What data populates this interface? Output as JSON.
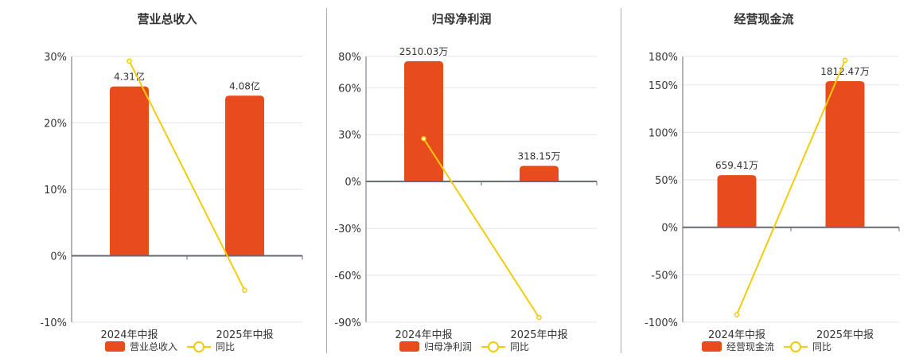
{
  "colors": {
    "bar": "#e84c1c",
    "line": "#f2cc0c",
    "grid": "#e0e4ee",
    "axis": "#666a73"
  },
  "chart_data": [
    {
      "type": "bar+line",
      "title": "营业总收入",
      "categories": [
        "2024年中报",
        "2025年中报"
      ],
      "bar_series": {
        "name": "营业总收入",
        "labels": [
          "4.31亿",
          "4.08亿"
        ],
        "values": [
          4.31,
          4.08
        ],
        "unit": "亿",
        "plotted_pct": [
          25.5,
          24.1
        ]
      },
      "line_series": {
        "name": "同比",
        "values": [
          29.3,
          -5.2
        ],
        "unit": "%"
      },
      "yticks": [
        "30%",
        "20%",
        "10%",
        "0%",
        "-10%"
      ],
      "ylim": [
        -10,
        30
      ],
      "grid": true,
      "legend_position": "bottom"
    },
    {
      "type": "bar+line",
      "title": "归母净利润",
      "categories": [
        "2024年中报",
        "2025年中报"
      ],
      "bar_series": {
        "name": "归母净利润",
        "labels": [
          "2510.03万",
          "318.15万"
        ],
        "values": [
          2510.03,
          318.15
        ],
        "unit": "万",
        "plotted_pct": [
          77,
          10
        ]
      },
      "line_series": {
        "name": "同比",
        "values": [
          27.4,
          -87.0
        ],
        "unit": "%"
      },
      "yticks": [
        "80%",
        "60%",
        "30%",
        "0%",
        "-30%",
        "-60%",
        "-90%"
      ],
      "ylim": [
        -90,
        80
      ],
      "grid": true,
      "legend_position": "bottom"
    },
    {
      "type": "bar+line",
      "title": "经营现金流",
      "categories": [
        "2024年中报",
        "2025年中报"
      ],
      "bar_series": {
        "name": "经营现金流",
        "labels": [
          "659.41万",
          "1812.47万"
        ],
        "values": [
          659.41,
          1812.47
        ],
        "unit": "万",
        "plotted_pct": [
          55,
          154
        ]
      },
      "line_series": {
        "name": "同比",
        "values": [
          -92.0,
          176.0
        ],
        "unit": "%"
      },
      "yticks": [
        "180%",
        "150%",
        "100%",
        "50%",
        "0%",
        "-50%",
        "-100%"
      ],
      "ylim": [
        -100,
        180
      ],
      "grid": true,
      "legend_position": "bottom"
    }
  ],
  "panels": [
    {
      "title": "营业总收入",
      "legend_bar": "营业总收入",
      "legend_line": "同比"
    },
    {
      "title": "归母净利润",
      "legend_bar": "归母净利润",
      "legend_line": "同比"
    },
    {
      "title": "经营现金流",
      "legend_bar": "经营现金流",
      "legend_line": "同比"
    }
  ]
}
